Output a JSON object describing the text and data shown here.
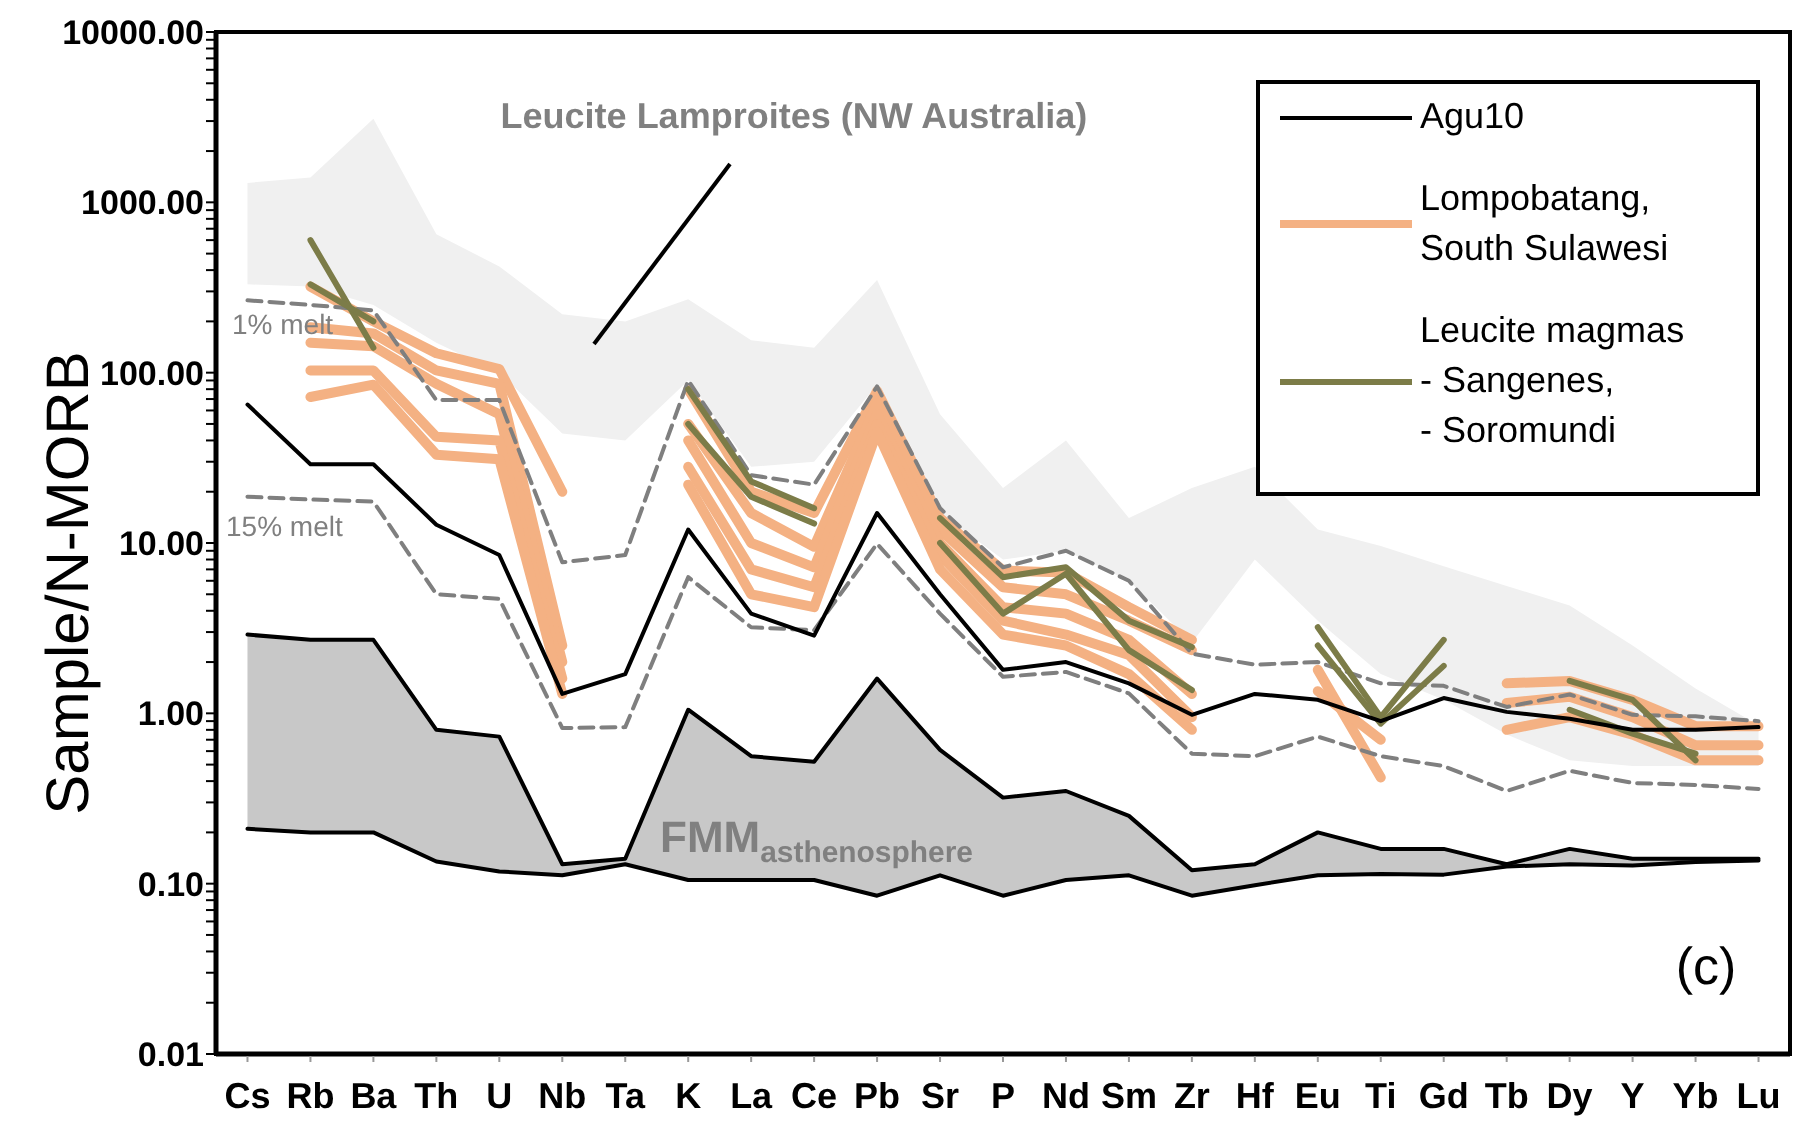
{
  "chart_data": {
    "type": "line",
    "categories": [
      "Cs",
      "Rb",
      "Ba",
      "Th",
      "U",
      "Nb",
      "Ta",
      "K",
      "La",
      "Ce",
      "Pb",
      "Sr",
      "P",
      "Nd",
      "Sm",
      "Zr",
      "Hf",
      "Eu",
      "Ti",
      "Gd",
      "Tb",
      "Dy",
      "Y",
      "Yb",
      "Lu"
    ],
    "ylabel": "Sample/N-MORB",
    "log": true,
    "ylim": [
      0.01,
      10000
    ],
    "yticks": [
      0.01,
      {
        "value": 0.02,
        "label": null
      },
      {
        "value": 0.03,
        "label": null
      },
      {
        "value": 0.04,
        "label": null
      },
      {
        "value": 0.05,
        "label": null
      },
      {
        "value": 0.06,
        "label": null
      },
      {
        "value": 0.07,
        "label": null
      },
      {
        "value": 0.08,
        "label": null
      },
      {
        "value": 0.09,
        "label": null
      },
      {
        "value": 0.1,
        "label": "0.10"
      },
      {
        "value": 0.2,
        "label": null
      },
      {
        "value": 0.3,
        "label": null
      },
      {
        "value": 0.4,
        "label": null
      },
      {
        "value": 0.5,
        "label": null
      },
      {
        "value": 0.6,
        "label": null
      },
      {
        "value": 0.7,
        "label": null
      },
      {
        "value": 0.8,
        "label": null
      },
      {
        "value": 0.9,
        "label": null
      },
      {
        "value": 1,
        "label": "1.00"
      },
      {
        "value": 2,
        "label": null
      },
      {
        "value": 3,
        "label": null
      },
      {
        "value": 4,
        "label": null
      },
      {
        "value": 5,
        "label": null
      },
      {
        "value": 6,
        "label": null
      },
      {
        "value": 7,
        "label": null
      },
      {
        "value": 8,
        "label": null
      },
      {
        "value": 9,
        "label": null
      },
      {
        "value": 10,
        "label": "10.00"
      },
      {
        "value": 20,
        "label": null
      },
      {
        "value": 30,
        "label": null
      },
      {
        "value": 40,
        "label": null
      },
      {
        "value": 50,
        "label": null
      },
      {
        "value": 60,
        "label": null
      },
      {
        "value": 70,
        "label": null
      },
      {
        "value": 80,
        "label": null
      },
      {
        "value": 90,
        "label": null
      },
      {
        "value": 100,
        "label": "100.00"
      },
      {
        "value": 200,
        "label": null
      },
      {
        "value": 300,
        "label": null
      },
      {
        "value": 400,
        "label": null
      },
      {
        "value": 500,
        "label": null
      },
      {
        "value": 600,
        "label": null
      },
      {
        "value": 700,
        "label": null
      },
      {
        "value": 800,
        "label": null
      },
      {
        "value": 900,
        "label": null
      },
      {
        "value": 1000,
        "label": "1000.00"
      },
      {
        "value": 2000,
        "label": null
      },
      {
        "value": 3000,
        "label": null
      },
      {
        "value": 4000,
        "label": null
      },
      {
        "value": 5000,
        "label": null
      },
      {
        "value": 6000,
        "label": null
      },
      {
        "value": 7000,
        "label": null
      },
      {
        "value": 8000,
        "label": null
      },
      {
        "value": 9000,
        "label": null
      },
      {
        "value": 10000,
        "label": "10000.00"
      }
    ],
    "legend": "top right",
    "marker": "none",
    "series": [
      {
        "color": "#f0f0f0",
        "values": [
          null,
          null,
          null,
          null,
          null,
          null,
          null,
          null,
          null,
          null,
          null,
          null,
          null,
          null,
          null,
          null,
          null,
          null,
          null,
          null,
          null,
          null,
          null,
          null,
          null
        ],
        "lower": [
          330,
          320,
          250,
          150,
          100,
          44,
          40,
          90,
          28,
          30,
          85,
          15,
          8,
          9,
          6,
          2.6,
          8,
          3.5,
          1.7,
          1.2,
          0.75,
          0.53,
          0.49,
          0.49,
          0.49
        ],
        "upper": [
          1300,
          1400,
          3100,
          650,
          420,
          220,
          200,
          270,
          155,
          140,
          350,
          57,
          21,
          40,
          14,
          21,
          28,
          12,
          9.6,
          7.3,
          5.6,
          4.3,
          2.5,
          1.4,
          0.85
        ]
      },
      {
        "color": "#c8c8c8",
        "values": [
          null,
          null,
          null,
          null,
          null,
          null,
          null,
          null,
          null,
          null,
          null,
          null,
          null,
          null,
          null,
          null,
          null,
          null,
          null,
          null,
          null,
          null,
          null,
          null,
          null
        ],
        "lower": [
          0.21,
          0.2,
          0.2,
          0.135,
          0.118,
          0.112,
          0.13,
          0.105,
          0.105,
          0.105,
          0.085,
          0.112,
          0.085,
          0.105,
          0.112,
          0.085,
          0.098,
          0.112,
          0.114,
          0.113,
          0.126,
          0.13,
          0.128,
          0.134,
          0.137
        ],
        "upper": [
          2.9,
          2.7,
          2.7,
          0.8,
          0.73,
          0.13,
          0.14,
          1.05,
          0.56,
          0.52,
          1.6,
          0.61,
          0.32,
          0.35,
          0.25,
          0.12,
          0.13,
          0.2,
          0.16,
          0.16,
          0.13,
          0.16,
          0.14,
          0.14,
          0.14
        ]
      },
      {
        "color": "#000000",
        "values": [
          2.9,
          2.7,
          2.7,
          0.8,
          0.73,
          0.13,
          0.14,
          1.05,
          0.56,
          0.52,
          1.6,
          0.61,
          0.32,
          0.35,
          0.25,
          0.12,
          0.13,
          0.2,
          0.16,
          0.16,
          0.13,
          0.16,
          0.14,
          0.14,
          0.14
        ]
      },
      {
        "color": "#000000",
        "values": [
          0.21,
          0.2,
          0.2,
          0.135,
          0.118,
          0.112,
          0.13,
          0.105,
          0.105,
          0.105,
          0.085,
          0.112,
          0.085,
          0.105,
          0.112,
          0.085,
          0.098,
          0.112,
          0.114,
          0.113,
          0.126,
          0.13,
          0.128,
          0.134,
          0.137
        ]
      },
      {
        "name": "Agu10",
        "color": "#000000",
        "values": [
          65,
          29,
          29,
          12.8,
          8.5,
          1.3,
          1.7,
          12,
          3.85,
          2.86,
          15,
          5,
          1.8,
          2,
          1.5,
          0.98,
          1.3,
          1.2,
          0.9,
          1.23,
          1.02,
          0.93,
          0.8,
          0.8,
          0.83
        ]
      },
      {
        "name": "Lompobatang,\nSouth Sulawesi",
        "color": "#f4b183",
        "values": [
          null,
          320,
          200,
          130,
          105,
          20,
          null,
          80,
          20,
          15,
          78,
          14,
          6.9,
          6.7,
          4.2,
          2.7,
          null,
          1.8,
          0.42,
          null,
          1.5,
          1.55,
          1.2,
          0.84,
          0.84
        ]
      },
      {
        "color": "#f4b183",
        "values": [
          null,
          185,
          170,
          103,
          86,
          2.5,
          null,
          50,
          15,
          9.5,
          66,
          12,
          5.5,
          5,
          3.5,
          2.35,
          null,
          1.35,
          0.7,
          null,
          1.15,
          1.25,
          0.95,
          0.65,
          0.65
        ]
      },
      {
        "color": "#f4b183",
        "values": [
          null,
          150,
          143,
          86,
          57,
          2,
          null,
          40,
          10,
          7.2,
          57,
          10,
          4.2,
          3.85,
          2.7,
          1.3,
          null,
          null,
          null,
          null,
          0.8,
          0.95,
          0.75,
          0.53,
          0.53
        ]
      },
      {
        "color": "#f4b183",
        "values": [
          null,
          103,
          103,
          42,
          40,
          1.6,
          null,
          28,
          7,
          5.5,
          50,
          8.5,
          3.5,
          2.9,
          2.2,
          0.95,
          null,
          null,
          null,
          null,
          null,
          null,
          null,
          null,
          null
        ]
      },
      {
        "color": "#f4b183",
        "values": [
          null,
          72,
          85,
          33,
          31,
          1.3,
          null,
          22,
          5,
          4.2,
          45,
          7,
          2.9,
          2.5,
          1.7,
          0.8,
          null,
          null,
          null,
          null,
          null,
          null,
          null,
          null,
          null
        ]
      },
      {
        "name": "Leucite magmas\n- Sangenes,\n- Soromundi",
        "color": "#7c7c48",
        "values": [
          null,
          600,
          140,
          null,
          null,
          null,
          null,
          80,
          23,
          16,
          null,
          14,
          6.3,
          7.2,
          3.5,
          2.45,
          null,
          3.2,
          0.95,
          2.7,
          null,
          1.55,
          1.2,
          0.53,
          null
        ]
      },
      {
        "color": "#7c7c48",
        "values": [
          null,
          330,
          200,
          null,
          null,
          null,
          null,
          50,
          18.7,
          13,
          null,
          10,
          3.85,
          6.6,
          2.35,
          1.37,
          null,
          2.5,
          0.87,
          1.9,
          null,
          1.05,
          0.76,
          0.58,
          null
        ]
      },
      {
        "color": "#7f7f7f",
        "line_style": "dashed",
        "values": [
          266,
          250,
          232,
          69,
          69,
          7.7,
          8.5,
          90,
          25,
          22,
          83,
          16,
          7.2,
          9,
          6,
          2.24,
          1.93,
          2,
          1.5,
          1.45,
          1.09,
          1.29,
          0.98,
          0.96,
          0.9
        ]
      },
      {
        "color": "#7f7f7f",
        "line_style": "dashed",
        "values": [
          18.7,
          18,
          17.5,
          5,
          4.7,
          0.82,
          0.83,
          6.3,
          3.2,
          3.08,
          9.9,
          3.85,
          1.64,
          1.75,
          1.31,
          0.58,
          0.56,
          0.73,
          0.56,
          0.49,
          0.35,
          0.46,
          0.39,
          0.38,
          0.36
        ]
      }
    ],
    "annotations": [
      "Leucite Lamproites (NW Australia)",
      "1% melt",
      "15% melt",
      "FMM$_{asthenosphere}$",
      "(c)"
    ]
  }
}
